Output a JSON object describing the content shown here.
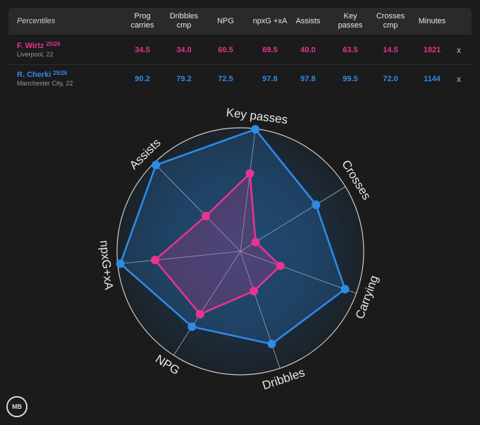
{
  "table": {
    "header_label": "Percentiles",
    "columns": [
      "Prog carries",
      "Dribbles cmp",
      "NPG",
      "npxG +xA",
      "Assists",
      "Key passes",
      "Crosses cmp",
      "Minutes"
    ],
    "players": [
      {
        "name": "F. Wirtz",
        "season": "25/26",
        "team": "Liverpool, 22",
        "color": "#e6348f",
        "values": [
          "34.5",
          "34.0",
          "60.5",
          "69.5",
          "40.0",
          "63.5",
          "14.5",
          "1821"
        ],
        "remove": "x"
      },
      {
        "name": "R. Cherki",
        "season": "25/26",
        "team": "Manchester City, 22",
        "color": "#2f8ae8",
        "values": [
          "90.2",
          "79.2",
          "72.5",
          "97.8",
          "97.8",
          "99.5",
          "72.0",
          "1144"
        ],
        "remove": "x"
      }
    ]
  },
  "chart_data": {
    "type": "radar",
    "axes": [
      "Key passes",
      "Crosses",
      "Carrying",
      "Dribbles",
      "NPG",
      "npxG+xA",
      "Assists"
    ],
    "range": [
      0,
      100
    ],
    "series": [
      {
        "name": "F. Wirtz",
        "color": "#e6348f",
        "values": [
          63.5,
          14.5,
          34.5,
          34.0,
          60.5,
          69.5,
          40.0
        ]
      },
      {
        "name": "R. Cherki",
        "color": "#2f8ae8",
        "values": [
          99.5,
          72.0,
          90.2,
          79.2,
          72.5,
          97.8,
          97.8
        ]
      }
    ]
  },
  "logo_text": "MB"
}
